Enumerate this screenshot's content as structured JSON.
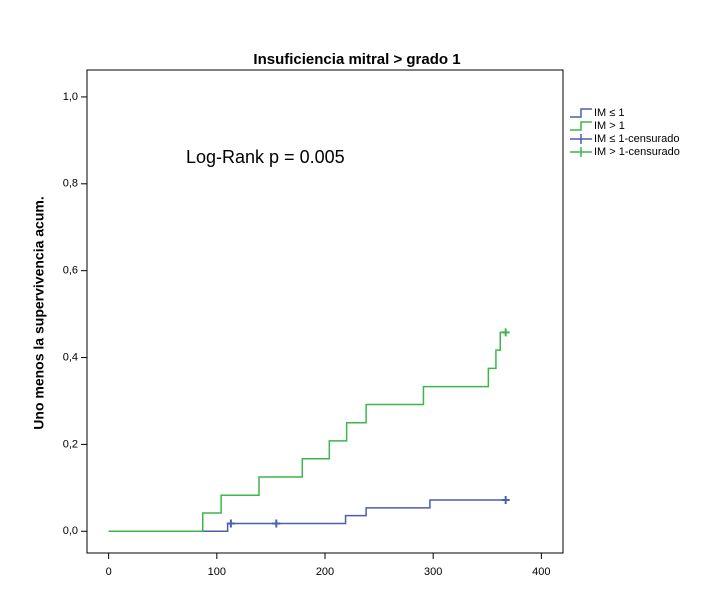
{
  "chart_data": {
    "type": "step",
    "title": "Insuficiencia mitral > grado 1",
    "y_label": "Uno menos la supervivencia acum.",
    "annotation": "Log-Rank p = 0.005",
    "xlim": [
      -20,
      420
    ],
    "ylim": [
      -0.05,
      1.062
    ],
    "xticks": [
      0,
      100,
      200,
      300,
      400
    ],
    "yticks": [
      {
        "value": 0,
        "label": "0,0"
      },
      {
        "value": 0.2,
        "label": "0,2"
      },
      {
        "value": 0.4,
        "label": "0,4"
      },
      {
        "value": 0.6,
        "label": "0,6"
      },
      {
        "value": 0.8,
        "label": "0,8"
      },
      {
        "value": 1.0,
        "label": "1,0"
      }
    ],
    "series": [
      {
        "name": "IM ≤ 1",
        "kind": "line",
        "color": "#4a5fae",
        "x": [
          0,
          110,
          219,
          238,
          297,
          367
        ],
        "y": [
          0,
          0.018,
          0.036,
          0.054,
          0.072,
          0.072
        ]
      },
      {
        "name": "IM > 1",
        "kind": "line",
        "color": "#3db54a",
        "x": [
          0,
          87,
          104,
          139,
          179,
          204,
          220,
          238,
          291,
          351,
          358,
          362,
          365
        ],
        "y": [
          0,
          0.042,
          0.083,
          0.125,
          0.167,
          0.208,
          0.25,
          0.292,
          0.333,
          0.375,
          0.417,
          0.458,
          0.458
        ]
      },
      {
        "name": "IM ≤ 1-censurado",
        "kind": "censored",
        "color": "#4a5fae",
        "x": [
          113,
          155,
          367
        ],
        "y": [
          0.018,
          0.018,
          0.072
        ]
      },
      {
        "name": "IM > 1-censurado",
        "kind": "censored",
        "color": "#3db54a",
        "x": [
          367
        ],
        "y": [
          0.458
        ]
      }
    ]
  }
}
